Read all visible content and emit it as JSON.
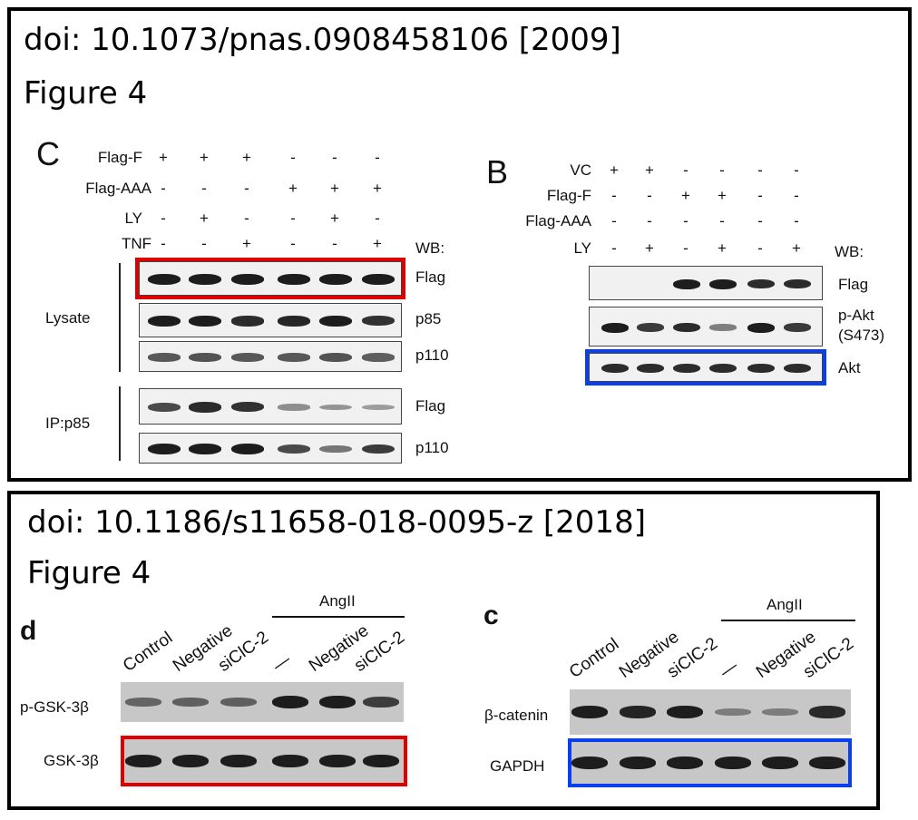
{
  "panels": [
    {
      "title": "doi: 10.1073/pnas.0908458106 [2009]",
      "subtitle": "Figure 4"
    },
    {
      "title": "doi: 10.1186/s11658-018-0095-z [2018]",
      "subtitle": "Figure 4"
    }
  ],
  "figC": {
    "letter": "C",
    "rows": [
      {
        "label": "Flag-F",
        "signs": [
          "+",
          "+",
          "+",
          "-",
          "-",
          "-"
        ]
      },
      {
        "label": "Flag-AAA",
        "signs": [
          "-",
          "-",
          "-",
          "+",
          "+",
          "+"
        ]
      },
      {
        "label": "LY",
        "signs": [
          "-",
          "+",
          "-",
          "-",
          "+",
          "-"
        ]
      },
      {
        "label": "TNF",
        "signs": [
          "-",
          "-",
          "+",
          "-",
          "-",
          "+"
        ]
      }
    ],
    "wb": "WB:",
    "groups": [
      "Lysate",
      "IP:p85"
    ],
    "blots": [
      {
        "label": "Flag",
        "intensities": [
          1,
          1,
          1,
          1,
          1,
          1
        ],
        "highlight": "red"
      },
      {
        "label": "p85",
        "intensities": [
          1,
          1,
          0.9,
          0.95,
          1,
          0.85
        ]
      },
      {
        "label": "p110",
        "intensities": [
          0.6,
          0.65,
          0.6,
          0.6,
          0.65,
          0.55
        ]
      },
      {
        "label": "Flag",
        "intensities": [
          0.7,
          0.9,
          0.85,
          0.25,
          0.2,
          0.15
        ]
      },
      {
        "label": "p110",
        "intensities": [
          1,
          1,
          1,
          0.7,
          0.4,
          0.8
        ]
      }
    ]
  },
  "figB": {
    "letter": "B",
    "rows": [
      {
        "label": "VC",
        "signs": [
          "+",
          "+",
          "-",
          "-",
          "-",
          "-"
        ]
      },
      {
        "label": "Flag-F",
        "signs": [
          "-",
          "-",
          "+",
          "+",
          "-",
          "-"
        ]
      },
      {
        "label": "Flag-AAA",
        "signs": [
          "-",
          "-",
          "-",
          "-",
          "-",
          "-"
        ]
      },
      {
        "label": "LY",
        "signs": [
          "-",
          "+",
          "-",
          "+",
          "-",
          "+"
        ]
      }
    ],
    "wb": "WB:",
    "blots": [
      {
        "label": "Flag",
        "intensities": [
          0,
          0,
          1,
          1,
          0.9,
          0.9
        ]
      },
      {
        "label": "p-Akt",
        "label2": "(S473)",
        "intensities": [
          1,
          0.8,
          0.9,
          0.35,
          1,
          0.8
        ]
      },
      {
        "label": "Akt",
        "intensities": [
          0.9,
          0.9,
          0.9,
          0.9,
          0.9,
          0.9
        ],
        "highlight": "blue"
      }
    ]
  },
  "figD": {
    "letter": "d",
    "group": "AngII",
    "lanes": [
      "Control",
      "Negative",
      "siClC-2",
      "—",
      "Negative",
      "siClC-2"
    ],
    "blots": [
      {
        "label": "p-GSK-3β",
        "intensities": [
          0.4,
          0.45,
          0.45,
          1,
          1,
          0.75
        ]
      },
      {
        "label": "GSK-3β",
        "intensities": [
          1,
          1,
          1,
          1,
          1,
          1
        ],
        "highlight": "red"
      }
    ]
  },
  "figc": {
    "letter": "c",
    "group": "AngII",
    "lanes": [
      "Control",
      "Negative",
      "siClC-2",
      "—",
      "Negative",
      "siClC-2"
    ],
    "blots": [
      {
        "label": "β-catenin",
        "intensities": [
          1,
          0.95,
          1,
          0.2,
          0.2,
          0.9
        ]
      },
      {
        "label": "GAPDH",
        "intensities": [
          1,
          1,
          1,
          1,
          1,
          1
        ],
        "highlight": "blue"
      }
    ]
  }
}
